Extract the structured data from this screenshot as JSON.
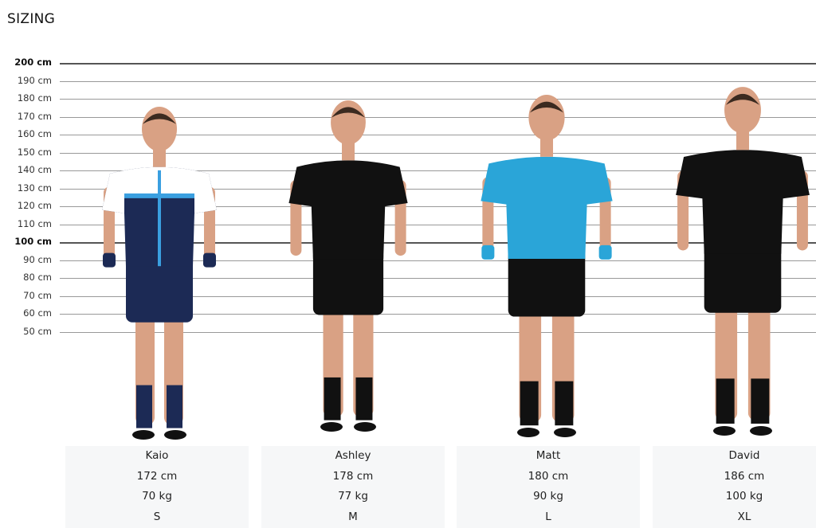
{
  "title": "SIZING",
  "ruler": {
    "labels": [
      "200 cm",
      "190 cm",
      "180 cm",
      "170 cm",
      "160 cm",
      "150 cm",
      "140 cm",
      "130 cm",
      "120 cm",
      "110 cm",
      "100 cm",
      "90 cm",
      "80 cm",
      "70 cm",
      "60 cm",
      "50 cm"
    ],
    "major": [
      "200 cm",
      "100 cm"
    ]
  },
  "models": [
    {
      "name": "Kaio",
      "height": "172 cm",
      "weight": "70 kg",
      "size": "S",
      "jersey": "#1c2a55",
      "jersey_accent": "#ffffff",
      "stripe": "#3a9fe0",
      "shorts": "#1c2a55",
      "socks": "#1c2a55",
      "gloves": "#1c2a55"
    },
    {
      "name": "Ashley",
      "height": "178 cm",
      "weight": "77 kg",
      "size": "M",
      "jersey": "#111111",
      "jersey_accent": "#111111",
      "stripe": "#111111",
      "shorts": "#111111",
      "socks": "#111111",
      "gloves": ""
    },
    {
      "name": "Matt",
      "height": "180 cm",
      "weight": "90 kg",
      "size": "L",
      "jersey": "#2aa5d8",
      "jersey_accent": "#2aa5d8",
      "stripe": "#2aa5d8",
      "shorts": "#111111",
      "socks": "#111111",
      "gloves": "#2aa5d8"
    },
    {
      "name": "David",
      "height": "186 cm",
      "weight": "100 kg",
      "size": "XL",
      "jersey": "#111111",
      "jersey_accent": "#111111",
      "stripe": "#111111",
      "shorts": "#111111",
      "socks": "#111111",
      "gloves": ""
    }
  ]
}
